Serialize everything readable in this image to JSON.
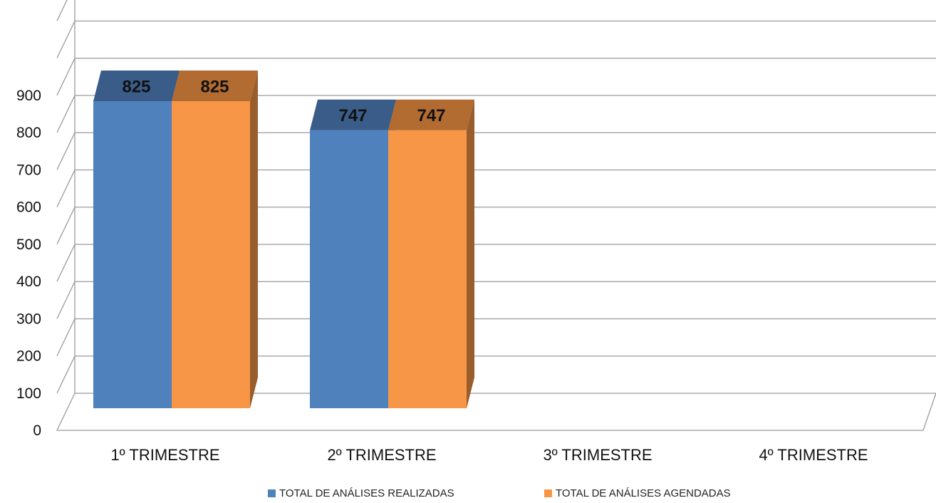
{
  "chart_data": {
    "type": "bar",
    "categories": [
      "1º TRIMESTRE",
      "2º TRIMESTRE",
      "3º TRIMESTRE",
      "4º TRIMESTRE"
    ],
    "series": [
      {
        "name": "TOTAL DE ANÁLISES REALIZADAS",
        "values": [
          825,
          747,
          null,
          null
        ],
        "color": "#4F81BD"
      },
      {
        "name": "TOTAL DE ANÁLISES AGENDADAS",
        "values": [
          825,
          747,
          null,
          null
        ],
        "color": "#F79646"
      }
    ],
    "y_ticks": [
      "0",
      "100",
      "200",
      "300",
      "400",
      "500",
      "600",
      "700",
      "800",
      "900"
    ],
    "ylim": [
      0,
      900
    ],
    "grid": true,
    "legend_position": "bottom",
    "style": "3d-clustered-column"
  }
}
